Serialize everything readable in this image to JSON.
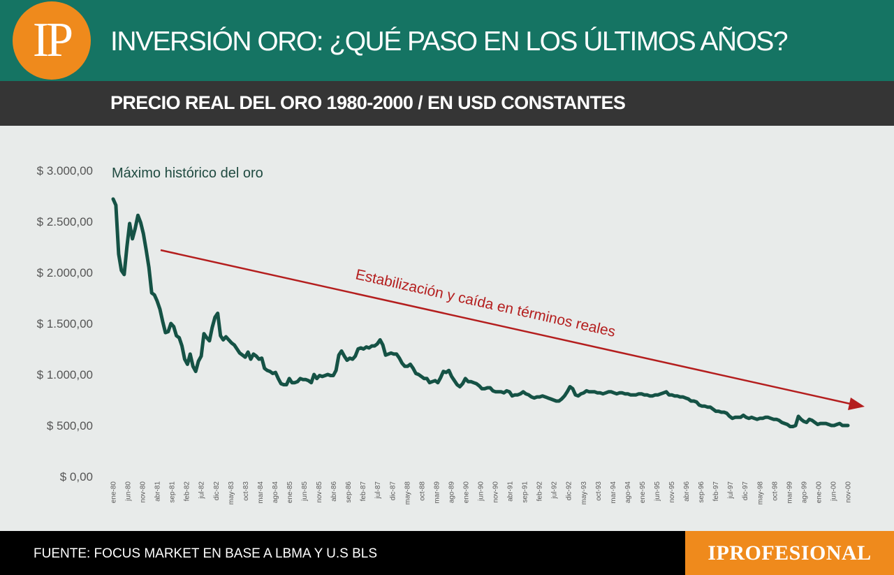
{
  "header": {
    "logo_text": "IP",
    "title": "INVERSIÓN ORO: ¿QUÉ PASO EN LOS ÚLTIMOS AÑOS?"
  },
  "subheader": {
    "title": "PRECIO REAL DEL ORO 1980-2000 / EN USD CONSTANTES"
  },
  "colors": {
    "header_bg": "#157463",
    "subheader_bg": "#353535",
    "chart_bg": "#e8ebea",
    "line": "#155245",
    "trend_arrow": "#b41e1e",
    "logo_bg": "#ef8a1c",
    "footer_bg": "#000000"
  },
  "chart_data": {
    "type": "line",
    "title": "PRECIO REAL DEL ORO 1980-2000 / EN USD CONSTANTES",
    "ylim": [
      0,
      3000
    ],
    "y_ticks": [
      {
        "value": 0,
        "label": "$ 0,00"
      },
      {
        "value": 500,
        "label": "$ 500,00"
      },
      {
        "value": 1000,
        "label": "$ 1.000,00"
      },
      {
        "value": 1500,
        "label": "$ 1.500,00"
      },
      {
        "value": 2000,
        "label": "$ 2.000,00"
      },
      {
        "value": 2500,
        "label": "$ 2.500,00"
      },
      {
        "value": 3000,
        "label": "$ 3.000,00"
      }
    ],
    "x_tick_labels": [
      "ene-80",
      "jun-80",
      "nov-80",
      "abr-81",
      "sep-81",
      "feb-82",
      "jul-82",
      "dic-82",
      "may-83",
      "oct-83",
      "mar-84",
      "ago-84",
      "ene-85",
      "jun-85",
      "nov-85",
      "abr-86",
      "sep-86",
      "feb-87",
      "jul-87",
      "dic-87",
      "may-88",
      "oct-88",
      "mar-89",
      "ago-89",
      "ene-90",
      "jun-90",
      "nov-90",
      "abr-91",
      "sep-91",
      "feb-92",
      "jul-92",
      "dic-92",
      "may-93",
      "oct-93",
      "mar-94",
      "ago-94",
      "ene-95",
      "jun-95",
      "nov-95",
      "abr-96",
      "sep-96",
      "feb-97",
      "jul-97",
      "dic-97",
      "may-98",
      "oct-98",
      "mar-99",
      "ago-99",
      "ene-00",
      "jun-00",
      "nov-00"
    ],
    "grid": false,
    "legend": "none",
    "series": [
      {
        "x_start": "ene-80",
        "x_end": "dic-00",
        "frequency": "monthly",
        "values": [
          2720,
          2660,
          2180,
          2020,
          1980,
          2250,
          2480,
          2330,
          2430,
          2560,
          2490,
          2380,
          2220,
          2050,
          1800,
          1780,
          1720,
          1640,
          1520,
          1410,
          1420,
          1500,
          1470,
          1380,
          1360,
          1280,
          1150,
          1100,
          1200,
          1080,
          1030,
          1130,
          1180,
          1400,
          1360,
          1330,
          1460,
          1560,
          1600,
          1380,
          1340,
          1370,
          1340,
          1310,
          1290,
          1250,
          1210,
          1190,
          1170,
          1220,
          1150,
          1200,
          1180,
          1150,
          1160,
          1060,
          1040,
          1030,
          1010,
          1020,
          960,
          910,
          900,
          900,
          960,
          920,
          920,
          930,
          960,
          950,
          950,
          940,
          920,
          1000,
          960,
          990,
          980,
          990,
          1000,
          990,
          990,
          1040,
          1190,
          1230,
          1180,
          1140,
          1160,
          1150,
          1180,
          1250,
          1260,
          1250,
          1270,
          1260,
          1280,
          1280,
          1300,
          1340,
          1290,
          1190,
          1200,
          1210,
          1200,
          1200,
          1160,
          1110,
          1080,
          1080,
          1100,
          1060,
          1010,
          1000,
          980,
          960,
          960,
          920,
          930,
          940,
          920,
          970,
          1030,
          1020,
          1040,
          980,
          940,
          900,
          880,
          910,
          960,
          930,
          930,
          920,
          910,
          890,
          860,
          860,
          870,
          870,
          840,
          830,
          830,
          830,
          820,
          840,
          830,
          790,
          800,
          800,
          810,
          830,
          810,
          800,
          780,
          770,
          780,
          780,
          790,
          780,
          770,
          760,
          750,
          740,
          740,
          760,
          790,
          830,
          880,
          860,
          800,
          790,
          810,
          820,
          840,
          830,
          830,
          830,
          820,
          820,
          810,
          820,
          830,
          830,
          820,
          810,
          820,
          820,
          810,
          810,
          800,
          800,
          800,
          810,
          810,
          800,
          800,
          790,
          790,
          800,
          800,
          810,
          820,
          830,
          800,
          800,
          790,
          790,
          780,
          780,
          770,
          760,
          740,
          740,
          730,
          700,
          690,
          690,
          680,
          680,
          660,
          640,
          640,
          630,
          630,
          620,
          590,
          570,
          580,
          580,
          580,
          600,
          580,
          570,
          580,
          570,
          560,
          570,
          570,
          580,
          580,
          570,
          560,
          560,
          550,
          530,
          520,
          510,
          490,
          490,
          500,
          590,
          560,
          540,
          530,
          560,
          550,
          530,
          510,
          520,
          520,
          520,
          510,
          500,
          500,
          510,
          520,
          500,
          500,
          500
        ]
      }
    ],
    "annotations": [
      {
        "text": "Máximo histórico del oro"
      },
      {
        "text": "Estabilización y caída en términos reales"
      }
    ]
  },
  "footer": {
    "source": "FUENTE: FOCUS MARKET EN BASE A LBMA Y U.S BLS",
    "brand": "IPROFESIONAL"
  }
}
